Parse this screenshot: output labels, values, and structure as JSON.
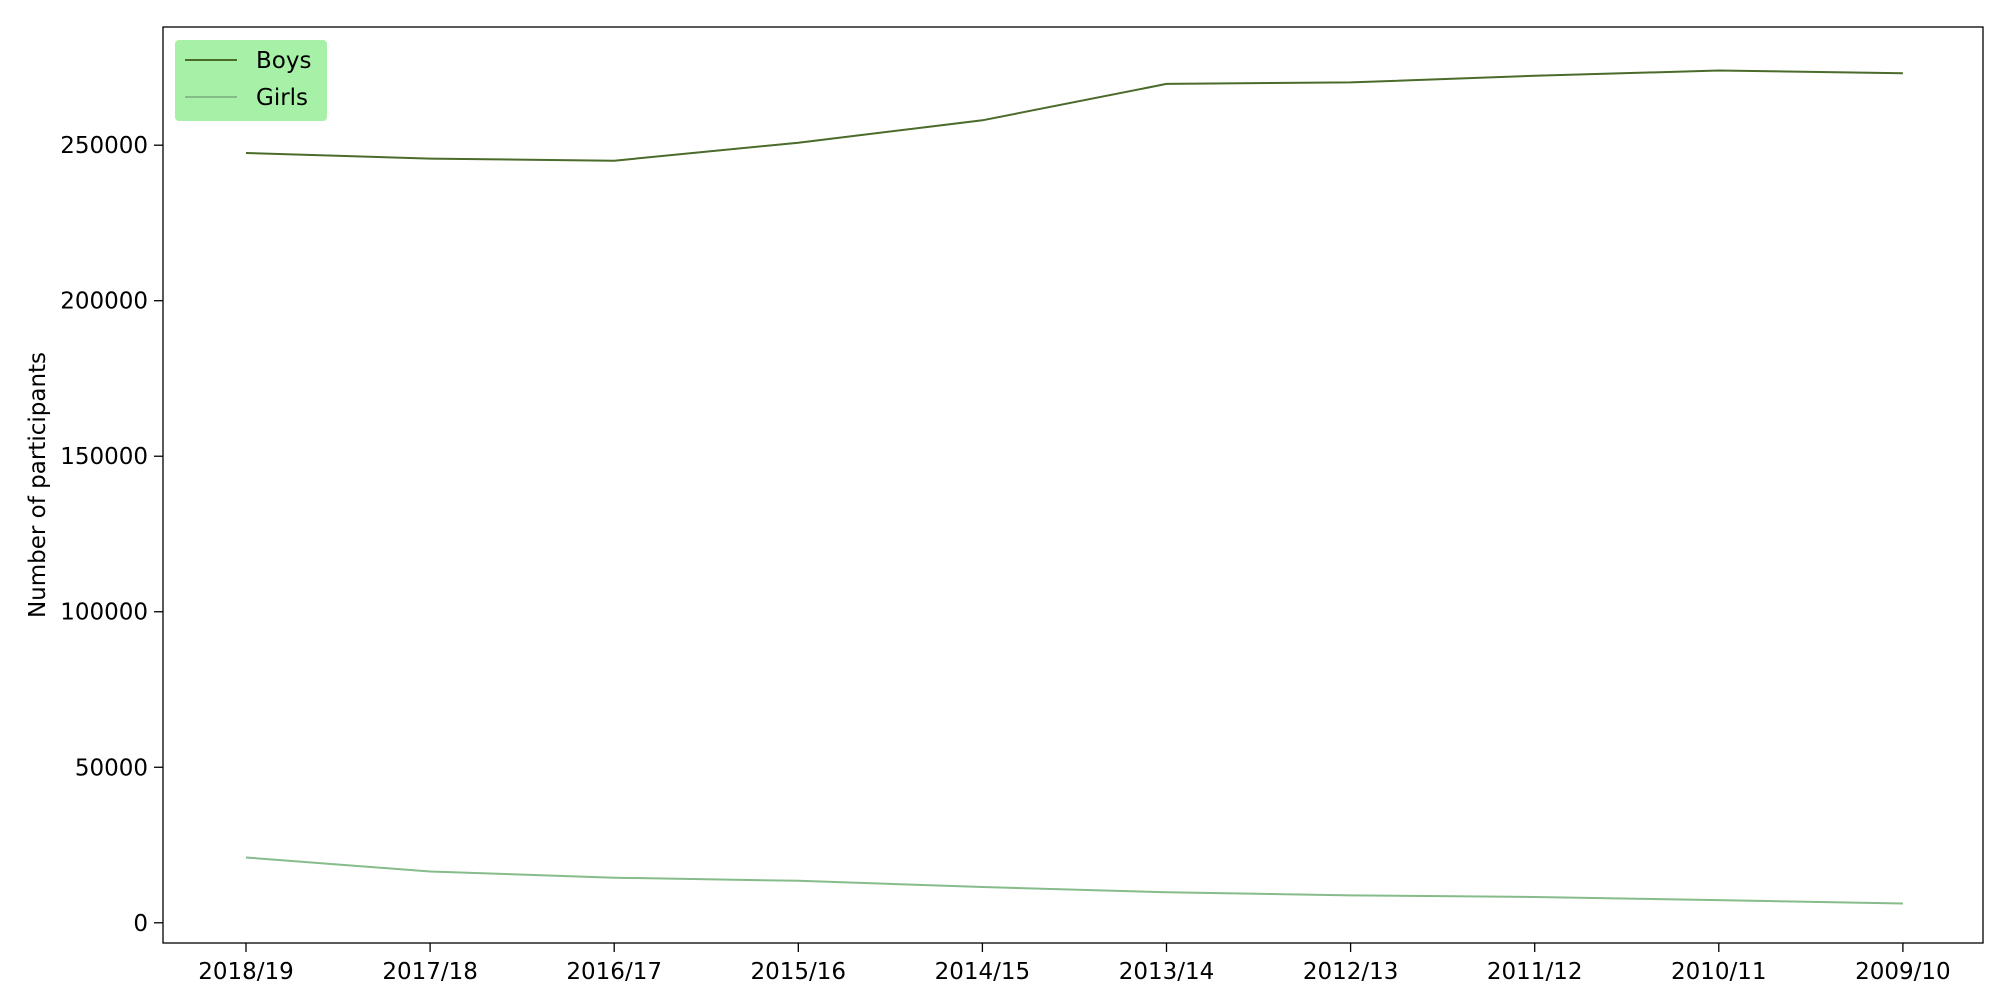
{
  "chart_data": {
    "type": "line",
    "title": "",
    "xlabel": "",
    "ylabel": "Number of participants",
    "categories": [
      "2018/19",
      "2017/18",
      "2016/17",
      "2015/16",
      "2014/15",
      "2013/14",
      "2012/13",
      "2011/12",
      "2010/11",
      "2009/10"
    ],
    "ylim": [
      -6500,
      288000
    ],
    "yticks": [
      0,
      50000,
      100000,
      150000,
      200000,
      250000
    ],
    "ytick_labels": [
      "0",
      "50000",
      "100000",
      "150000",
      "200000",
      "250000"
    ],
    "grid": false,
    "legend_position": "top-left",
    "legend_background": "#a7f0a7",
    "series": [
      {
        "name": "Boys",
        "color": "#4a6b2a",
        "values": [
          247500,
          245700,
          245000,
          250800,
          258000,
          269700,
          270200,
          272300,
          274000,
          273100
        ]
      },
      {
        "name": "Girls",
        "color": "#86bb8a",
        "values": [
          21000,
          16500,
          14500,
          13500,
          11500,
          9800,
          8800,
          8300,
          7300,
          6200
        ]
      }
    ]
  }
}
